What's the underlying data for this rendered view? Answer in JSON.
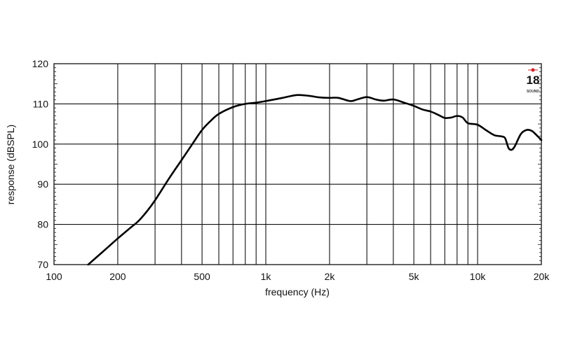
{
  "chart_data": {
    "type": "line",
    "title": "",
    "xlabel": "frequency (Hz)",
    "ylabel": "response (dBSPL)",
    "x_scale": "log",
    "xlim": [
      100,
      20000
    ],
    "ylim": [
      70,
      120
    ],
    "grid": true,
    "x_ticks": [
      100,
      200,
      500,
      1000,
      2000,
      5000,
      10000,
      20000
    ],
    "x_tick_labels": [
      "100",
      "200",
      "500",
      "1k",
      "2k",
      "5k",
      "10k",
      "20k"
    ],
    "y_ticks": [
      70,
      80,
      90,
      100,
      110,
      120
    ],
    "y_tick_labels": [
      "70",
      "80",
      "90",
      "100",
      "110",
      "120"
    ],
    "series": [
      {
        "color": "#000000",
        "x": [
          145,
          170,
          200,
          230,
          250,
          275,
          300,
          350,
          400,
          450,
          500,
          550,
          600,
          700,
          800,
          900,
          1000,
          1200,
          1400,
          1600,
          1800,
          2000,
          2200,
          2500,
          2700,
          3000,
          3300,
          3600,
          4000,
          4500,
          5000,
          5500,
          6000,
          6500,
          7000,
          7500,
          8000,
          8500,
          9000,
          10000,
          11000,
          12000,
          13000,
          13500,
          14000,
          14500,
          15000,
          16000,
          17000,
          18000,
          19000,
          20000
        ],
        "y": [
          70,
          73.2,
          76.5,
          79.2,
          80.8,
          83.3,
          86,
          91.5,
          96,
          100,
          103.5,
          105.8,
          107.5,
          109.2,
          110,
          110.3,
          110.7,
          111.5,
          112.2,
          112,
          111.6,
          111.5,
          111.5,
          110.7,
          111.1,
          111.7,
          111.1,
          110.8,
          111.1,
          110.3,
          109.5,
          108.6,
          108.1,
          107.3,
          106.5,
          106.6,
          107,
          106.6,
          105.2,
          104.8,
          103.4,
          102.2,
          101.9,
          101.4,
          99,
          98.6,
          99.5,
          102.5,
          103.5,
          103.3,
          102.2,
          101
        ]
      }
    ]
  },
  "logo": {
    "text": "18 SOUND",
    "number": "18",
    "word": "SOUND",
    "accent": "#d0202a"
  }
}
